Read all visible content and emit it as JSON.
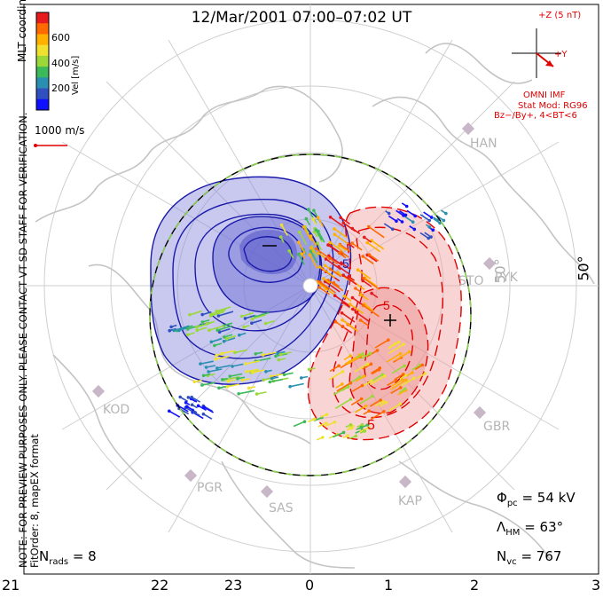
{
  "title": "12/Mar/2001 07:00–07:02 UT",
  "note": {
    "line1": "NOTE: FOR PREVIEW PURPOSES ONLY. PLEASE CONTACT VT-SD STAFF FOR VERIFICATION.",
    "line2": "FitOrder: 8, mapEX format"
  },
  "coordinates_label": "MLT coordinates",
  "color_scale": {
    "label": "Vel [m/s]",
    "ticks": [
      "600",
      "400",
      "200"
    ],
    "colors": [
      "#e41a1c",
      "#ff6a00",
      "#ffb000",
      "#f0e030",
      "#9ad83a",
      "#3cba5a",
      "#2a8fb0",
      "#3050c0",
      "#1010ff"
    ]
  },
  "reference_vector": {
    "label": "1000 m/s",
    "color": "#e00000"
  },
  "imf": {
    "bz_label": "+Z (5 nT)",
    "by_label": "+Y",
    "source": "OMNI IMF",
    "model_line1": "Stat Mod: RG96",
    "model_line2": "Bz−/By+, 4<BT<6"
  },
  "latitude_labels": [
    "50°",
    "50°"
  ],
  "radar_sites": [
    "HAN",
    "STO",
    "PYK",
    "KOD",
    "GBR",
    "PGR",
    "SAS",
    "KAP"
  ],
  "contour_labels": [
    "5",
    "5",
    "5"
  ],
  "mlt_hours": [
    "21",
    "22",
    "23",
    "0",
    "1",
    "2",
    "3"
  ],
  "stats": {
    "n_rads_label": "N",
    "n_rads_sub": "rads",
    "n_rads_value": "= 8",
    "phi_label": "Φ",
    "phi_sub": "pc",
    "phi_value": "= 54 kV",
    "lambda_label": "Λ",
    "lambda_sub": "HM",
    "lambda_value": "= 63°",
    "nvc_label": "N",
    "nvc_sub": "vc",
    "nvc_value": "= 767"
  },
  "colors": {
    "negative_contour": "#1a1aaa",
    "positive_contour": "#e00000",
    "negative_fill": "#8888dd",
    "positive_fill": "#f0a0a0",
    "boundary": "#000000",
    "coast": "#c4c4c4"
  }
}
